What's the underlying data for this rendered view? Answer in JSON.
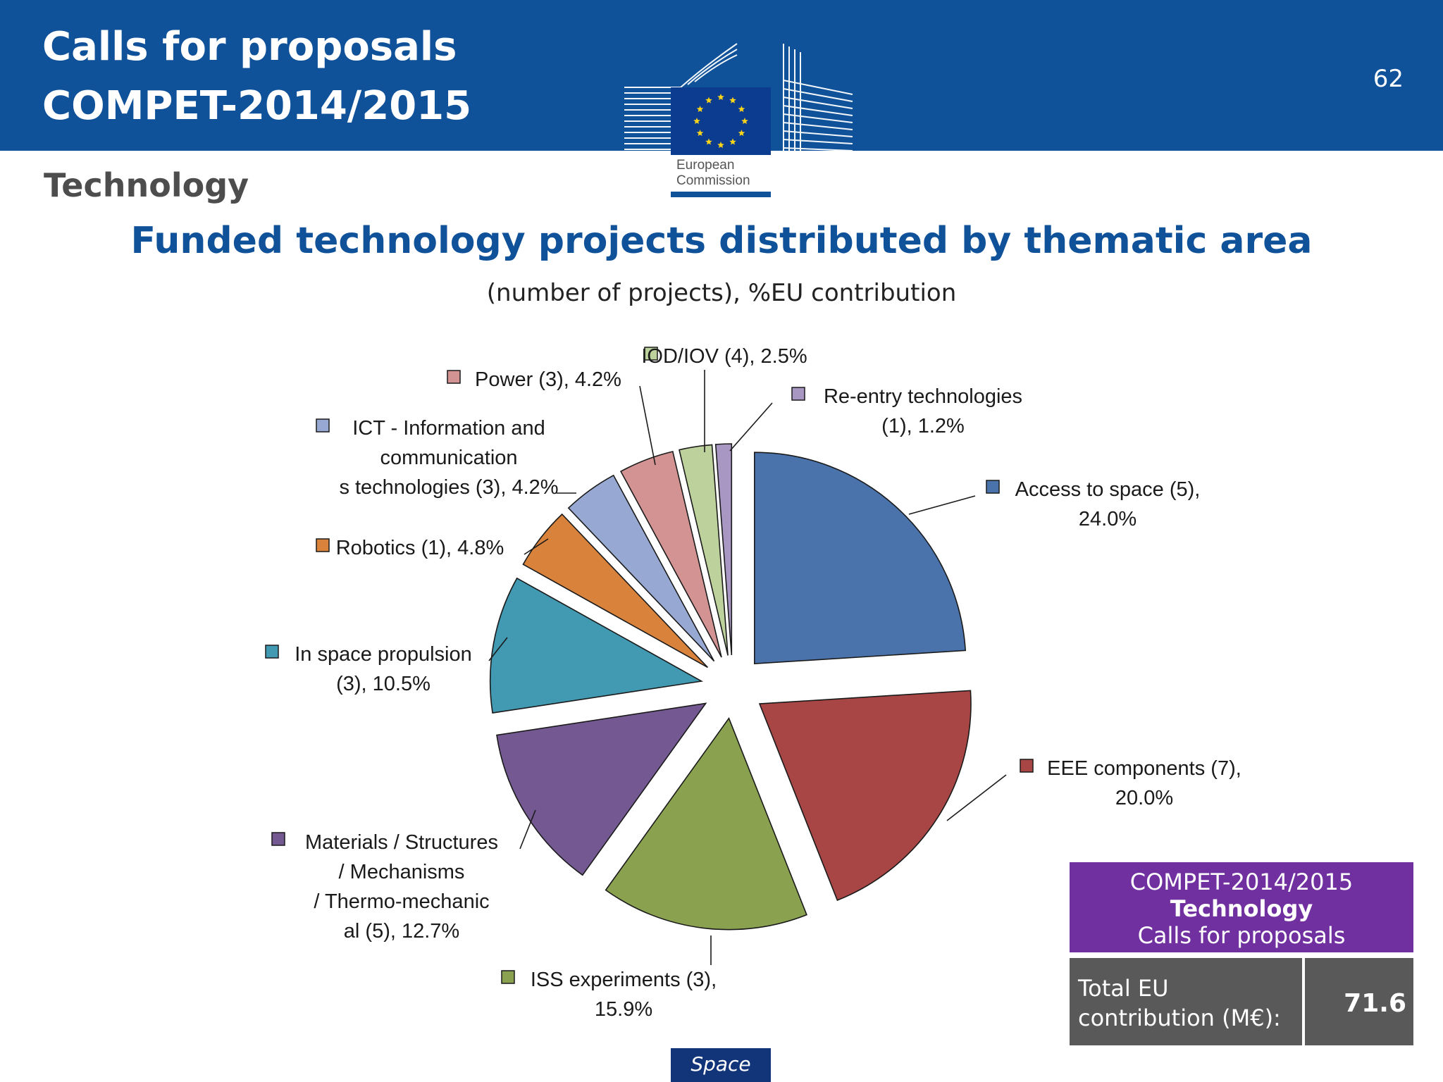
{
  "header": {
    "title_line1": "Calls for proposals",
    "title_line2": "COMPET-2014/2015",
    "page_number": "62",
    "logo_text_line1": "European",
    "logo_text_line2": "Commission",
    "brand_color": "#10529a"
  },
  "section_label": "Technology",
  "chart_data": {
    "type": "pie",
    "title": "Funded technology projects distributed by thematic area",
    "subtitle": "(number of projects), %EU contribution",
    "unit": "%EU contribution",
    "slices": [
      {
        "label": "Access to space (5), 24.0%",
        "name": "Access to space",
        "projects": 5,
        "value": 24.0,
        "color": "#4a72ab"
      },
      {
        "label": "EEE components (7), 20.0%",
        "name": "EEE components",
        "projects": 7,
        "value": 20.0,
        "color": "#a84545"
      },
      {
        "label": "ISS experiments (3), 15.9%",
        "name": "ISS experiments",
        "projects": 3,
        "value": 15.9,
        "color": "#8aa24f"
      },
      {
        "label": "Materials / Structures / Mechanisms / Thermo-mechanical (5), 12.7%",
        "name": "Materials / Structures / Mechanisms / Thermo-mechanical",
        "projects": 5,
        "value": 12.7,
        "color": "#735891"
      },
      {
        "label": "In space propulsion (3), 10.5%",
        "name": "In space propulsion",
        "projects": 3,
        "value": 10.5,
        "color": "#4199b2"
      },
      {
        "label": "Robotics (1), 4.8%",
        "name": "Robotics",
        "projects": 1,
        "value": 4.8,
        "color": "#d9823b"
      },
      {
        "label": "ICT - Information and communications technologies (3), 4.2%",
        "name": "ICT - Information and communications technologies",
        "projects": 3,
        "value": 4.2,
        "color": "#97a9d3"
      },
      {
        "label": "Power (3), 4.2%",
        "name": "Power",
        "projects": 3,
        "value": 4.2,
        "color": "#d39393"
      },
      {
        "label": "IOD/IOV (4), 2.5%",
        "name": "IOD/IOV",
        "projects": 4,
        "value": 2.5,
        "color": "#bcd19b"
      },
      {
        "label": "Re-entry technologies (1), 1.2%",
        "name": "Re-entry technologies",
        "projects": 1,
        "value": 1.2,
        "color": "#a896c3"
      }
    ],
    "legend": "inline labels with colored square markers"
  },
  "infobox": {
    "line1": "COMPET-2014/2015",
    "line2": "Technology",
    "line3": "Calls for proposals",
    "total_label_line1": "Total EU",
    "total_label_line2": "contribution (M€):",
    "total_value": "71.6",
    "accent_color": "#7030a0"
  },
  "footer": {
    "tag": "Space"
  }
}
